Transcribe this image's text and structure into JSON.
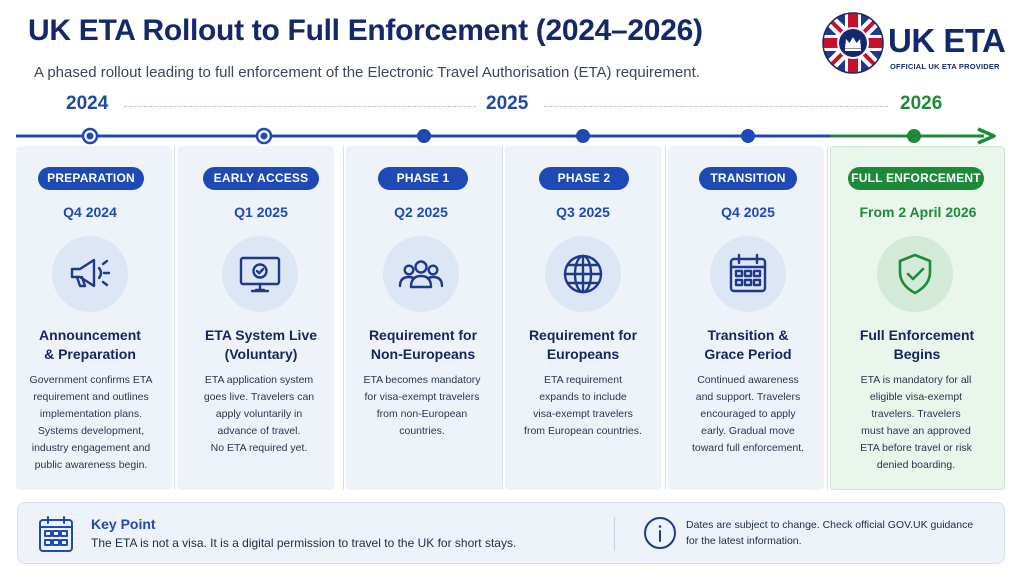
{
  "header": {
    "title": "UK ETA Rollout to Full Enforcement (2024–2026)",
    "subtitle": "A phased rollout leading to full enforcement of the Electronic Travel Authorisation (ETA) requirement."
  },
  "logo": {
    "brand": "UK ETA",
    "tagline": "OFFICIAL UK ETA PROVIDER",
    "icon": "union-flag-crown-icon"
  },
  "timeline": {
    "years": [
      "2024",
      "2025",
      "2026"
    ],
    "accent_blue": "#1f49b5",
    "accent_green": "#1d8a3a"
  },
  "phases": [
    {
      "tag": "PREPARATION",
      "date": "Q4 2024",
      "icon": "megaphone-icon",
      "heading": [
        "Announcement",
        "& Preparation"
      ],
      "description": [
        "Government confirms ETA",
        "requirement and outlines",
        "implementation plans.",
        "Systems development,",
        "industry engagement and",
        "public awareness begin."
      ]
    },
    {
      "tag": "EARLY ACCESS",
      "date": "Q1 2025",
      "icon": "monitor-check-icon",
      "heading": [
        "ETA System Live",
        "(Voluntary)"
      ],
      "description": [
        "ETA application system",
        "goes live. Travelers can",
        "apply voluntarily in",
        "advance of travel.",
        "No ETA required yet."
      ]
    },
    {
      "tag": "PHASE 1",
      "date": "Q2 2025",
      "icon": "people-group-icon",
      "heading": [
        "Requirement for",
        "Non-Europeans"
      ],
      "description": [
        "ETA becomes mandatory",
        "for visa-exempt travelers",
        "from non-European",
        "countries."
      ]
    },
    {
      "tag": "PHASE 2",
      "date": "Q3 2025",
      "icon": "globe-icon",
      "heading": [
        "Requirement for",
        "Europeans"
      ],
      "description": [
        "ETA requirement",
        "expands to include",
        "visa-exempt travelers",
        "from European countries."
      ]
    },
    {
      "tag": "TRANSITION",
      "date": "Q4 2025",
      "icon": "calendar-icon",
      "heading": [
        "Transition &",
        "Grace Period"
      ],
      "description": [
        "Continued awareness",
        "and support. Travelers",
        "encouraged to apply",
        "early. Gradual move",
        "toward full enforcement."
      ]
    },
    {
      "tag": "FULL ENFORCEMENT",
      "date": "From 2 April 2026",
      "icon": "shield-check-icon",
      "heading": [
        "Full Enforcement",
        "Begins"
      ],
      "description": [
        "ETA is mandatory for all",
        "eligible visa-exempt",
        "travelers. Travelers",
        "must have an approved",
        "ETA before travel or risk",
        "denied boarding."
      ]
    }
  ],
  "footer": {
    "key_point_title": "Key Point",
    "key_point_text": "The ETA is not a visa. It is a digital permission to travel to the UK for short stays.",
    "note": [
      "Dates are subject to change. Check official GOV.UK guidance",
      "for the latest information."
    ],
    "key_point_icon": "calendar-icon",
    "note_icon": "info-icon"
  }
}
